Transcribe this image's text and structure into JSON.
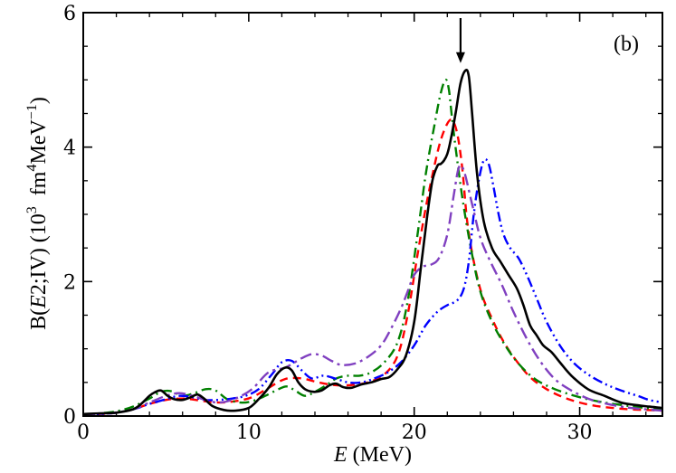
{
  "chart_data": {
    "type": "line",
    "panel_label": "(b)",
    "xlabel": {
      "italic": "E",
      "rest": " (MeV)"
    },
    "ylabel": {
      "pre": "B(",
      "italic": "E",
      "mid": "2;IV) (10",
      "sup1": "3",
      "mid2": "  fm",
      "sup2": "4",
      "mid3": "MeV",
      "sup3": "−1",
      "post": ")"
    },
    "xlim": [
      0,
      35
    ],
    "ylim": [
      0,
      6
    ],
    "xticks": [
      0,
      10,
      20,
      30
    ],
    "xtick_labels": [
      "0",
      "10",
      "20",
      "30"
    ],
    "yticks": [
      0,
      2,
      4,
      6
    ],
    "ytick_labels": [
      "0",
      "2",
      "4",
      "6"
    ],
    "x_minor_step": 2,
    "y_minor_step": 0.5,
    "arrow": {
      "x": 22.8,
      "y_top": 6.0,
      "y_tip": 5.25
    },
    "series": [
      {
        "name": "black-solid",
        "color": "#000000",
        "dash": "solid",
        "x": [
          0,
          1,
          2,
          3,
          3.5,
          4,
          4.3,
          4.7,
          5.1,
          5.5,
          6,
          6.5,
          6.9,
          7.3,
          7.8,
          8.5,
          9.2,
          10,
          10.6,
          11.2,
          11.7,
          12.2,
          12.6,
          13,
          13.4,
          13.9,
          14.4,
          14.9,
          15.3,
          15.7,
          16.2,
          16.8,
          17.4,
          18,
          18.5,
          19,
          19.5,
          20,
          20.4,
          20.8,
          21.1,
          21.4,
          21.6,
          21.8,
          22,
          22.2,
          22.5,
          22.8,
          23.1,
          23.3,
          23.5,
          23.8,
          24.2,
          24.7,
          25.2,
          25.7,
          26.2,
          26.6,
          27,
          27.4,
          27.8,
          28.3,
          28.8,
          29.5,
          30.5,
          31.5,
          32.5,
          33.5,
          34.2,
          35
        ],
        "y": [
          0.03,
          0.04,
          0.05,
          0.1,
          0.18,
          0.3,
          0.35,
          0.38,
          0.3,
          0.25,
          0.24,
          0.28,
          0.32,
          0.26,
          0.15,
          0.09,
          0.08,
          0.12,
          0.25,
          0.42,
          0.62,
          0.72,
          0.68,
          0.5,
          0.4,
          0.36,
          0.38,
          0.46,
          0.48,
          0.43,
          0.42,
          0.47,
          0.5,
          0.55,
          0.58,
          0.7,
          0.9,
          1.4,
          2.2,
          3.0,
          3.5,
          3.72,
          3.75,
          3.8,
          3.9,
          4.1,
          4.5,
          4.95,
          5.14,
          5.05,
          4.5,
          3.6,
          2.9,
          2.5,
          2.3,
          2.1,
          1.9,
          1.65,
          1.35,
          1.2,
          1.05,
          0.95,
          0.8,
          0.6,
          0.4,
          0.3,
          0.2,
          0.16,
          0.14,
          0.12
        ]
      },
      {
        "name": "red-dashed",
        "color": "#ff0000",
        "dash": "dashed",
        "x": [
          0,
          1,
          2,
          3,
          4,
          5,
          5.8,
          6.5,
          7.3,
          8.2,
          9.2,
          10.2,
          11.2,
          12.2,
          13.2,
          14.2,
          15.2,
          16.2,
          17.2,
          18.2,
          19,
          19.6,
          20.2,
          20.7,
          21.2,
          21.6,
          22,
          22.3,
          22.6,
          22.9,
          23.2,
          23.6,
          24.1,
          24.7,
          25.3,
          26,
          27,
          28,
          29,
          30,
          31,
          32,
          33,
          34,
          35
        ],
        "y": [
          0.02,
          0.03,
          0.05,
          0.1,
          0.18,
          0.24,
          0.26,
          0.25,
          0.22,
          0.2,
          0.22,
          0.28,
          0.42,
          0.55,
          0.56,
          0.5,
          0.46,
          0.46,
          0.5,
          0.62,
          0.9,
          1.5,
          2.4,
          3.1,
          3.7,
          4.1,
          4.35,
          4.4,
          4.2,
          3.7,
          2.9,
          2.3,
          1.8,
          1.45,
          1.15,
          0.88,
          0.58,
          0.4,
          0.28,
          0.2,
          0.15,
          0.12,
          0.1,
          0.09,
          0.08
        ]
      },
      {
        "name": "green-dashdot",
        "color": "#008000",
        "dash": "dashdot",
        "x": [
          0,
          1,
          2,
          3,
          4,
          4.7,
          5.3,
          6,
          6.7,
          7.4,
          8,
          8.7,
          9.5,
          10.2,
          11,
          11.8,
          12.3,
          12.8,
          13.4,
          14,
          14.7,
          15.3,
          16,
          16.7,
          17.4,
          18.2,
          19,
          19.6,
          20.2,
          20.7,
          21.2,
          21.6,
          21.9,
          22.1,
          22.3,
          22.6,
          23,
          23.5,
          24,
          24.7,
          25.5,
          26.3,
          27.3,
          28.5,
          30,
          31.5,
          33,
          34,
          35
        ],
        "y": [
          0.02,
          0.04,
          0.07,
          0.14,
          0.26,
          0.36,
          0.37,
          0.3,
          0.34,
          0.4,
          0.38,
          0.25,
          0.2,
          0.22,
          0.3,
          0.4,
          0.44,
          0.38,
          0.3,
          0.36,
          0.46,
          0.56,
          0.6,
          0.6,
          0.65,
          0.8,
          1.1,
          1.7,
          2.7,
          3.6,
          4.3,
          4.8,
          5.0,
          4.85,
          4.4,
          3.8,
          3.1,
          2.4,
          1.85,
          1.4,
          1.05,
          0.78,
          0.55,
          0.4,
          0.28,
          0.2,
          0.15,
          0.12,
          0.1
        ]
      },
      {
        "name": "blue-dashdotdot",
        "color": "#0000ff",
        "dash": "dashdotdot",
        "x": [
          0,
          1,
          2,
          3,
          4,
          5,
          5.8,
          6.6,
          7.4,
          8.2,
          9,
          9.8,
          10.6,
          11.4,
          12,
          12.6,
          13.2,
          13.8,
          14.5,
          15.2,
          16,
          16.8,
          17.6,
          18.4,
          19.2,
          20,
          20.7,
          21.4,
          22,
          22.6,
          23,
          23.3,
          23.6,
          23.9,
          24.2,
          24.5,
          24.8,
          25.1,
          25.4,
          25.8,
          26.3,
          26.8,
          27.4,
          28,
          28.8,
          29.6,
          30.5,
          31.5,
          32.5,
          33.5,
          34.2,
          35
        ],
        "y": [
          0.02,
          0.03,
          0.05,
          0.1,
          0.18,
          0.25,
          0.3,
          0.28,
          0.24,
          0.24,
          0.26,
          0.3,
          0.4,
          0.62,
          0.8,
          0.82,
          0.68,
          0.56,
          0.6,
          0.56,
          0.5,
          0.5,
          0.56,
          0.65,
          0.8,
          1.05,
          1.35,
          1.55,
          1.65,
          1.72,
          1.9,
          2.3,
          3.0,
          3.5,
          3.8,
          3.75,
          3.4,
          3.0,
          2.7,
          2.5,
          2.35,
          2.1,
          1.75,
          1.4,
          1.05,
          0.8,
          0.62,
          0.48,
          0.38,
          0.3,
          0.24,
          0.2
        ]
      },
      {
        "name": "purple-dashdot",
        "color": "#8040c0",
        "dash": "dashdot2",
        "x": [
          0,
          1,
          2,
          3,
          4,
          5,
          5.8,
          6.6,
          7.4,
          8.2,
          9.2,
          10.2,
          11.2,
          12.2,
          13.2,
          13.8,
          14.4,
          15,
          15.6,
          16.4,
          17.2,
          18,
          18.6,
          19.2,
          19.6,
          20,
          20.5,
          21,
          21.5,
          22,
          22.4,
          22.7,
          23,
          23.5,
          24,
          24.6,
          25.3,
          26,
          26.8,
          27.6,
          28.5,
          29.5,
          30.5,
          31.5,
          32.5,
          33.5,
          35
        ],
        "y": [
          0.02,
          0.03,
          0.05,
          0.1,
          0.2,
          0.3,
          0.34,
          0.3,
          0.24,
          0.2,
          0.26,
          0.4,
          0.65,
          0.72,
          0.86,
          0.92,
          0.9,
          0.82,
          0.76,
          0.78,
          0.88,
          1.05,
          1.3,
          1.6,
          1.85,
          2.1,
          2.22,
          2.25,
          2.35,
          2.7,
          3.3,
          3.7,
          3.65,
          3.15,
          2.65,
          2.3,
          1.95,
          1.55,
          1.15,
          0.82,
          0.55,
          0.38,
          0.26,
          0.19,
          0.14,
          0.11,
          0.08
        ]
      }
    ]
  }
}
